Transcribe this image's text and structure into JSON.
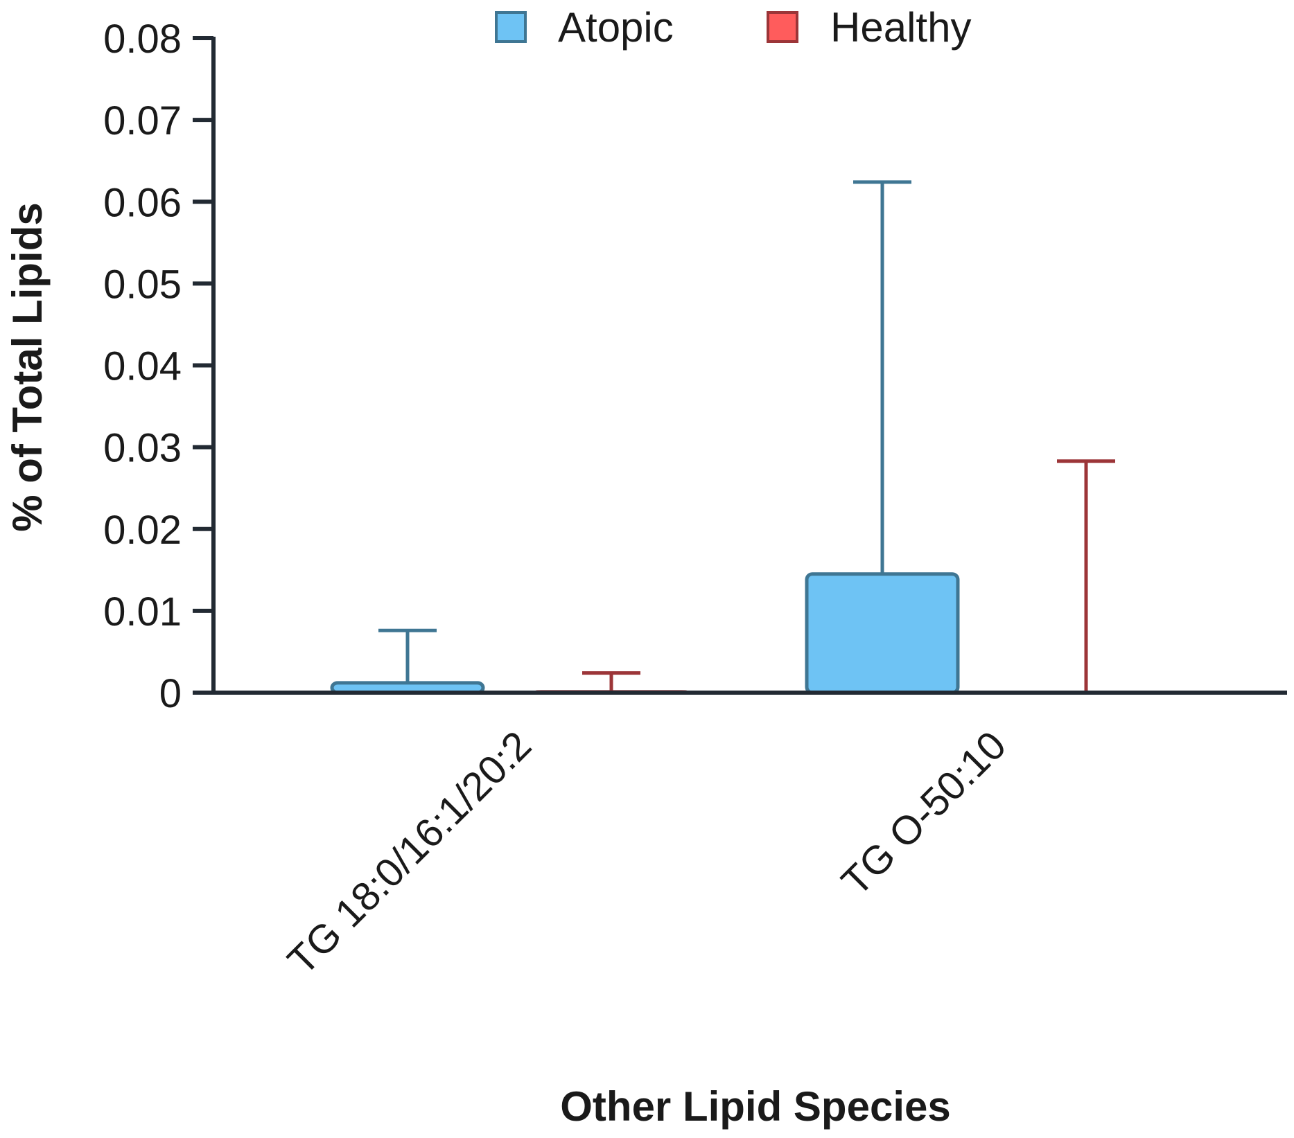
{
  "chart_data": {
    "type": "bar",
    "title": "",
    "xlabel": "Other Lipid Species",
    "ylabel": "% of Total Lipids",
    "categories": [
      "TG 18:0/16:1/20:2",
      "TG O-50:10"
    ],
    "series": [
      {
        "name": "Atopic",
        "values": [
          0.0012,
          0.0145
        ],
        "error_upper": [
          0.0076,
          0.0624
        ],
        "fill": "#6ec3f4",
        "stroke": "#3f7693"
      },
      {
        "name": "Healthy",
        "values": [
          0.0001,
          0.0
        ],
        "error_upper": [
          0.0024,
          0.0283
        ],
        "fill": "#ff5c5c",
        "stroke": "#9c3538"
      }
    ],
    "ylim": [
      0,
      0.08
    ],
    "yticks": [
      "0",
      "0.01",
      "0.02",
      "0.03",
      "0.04",
      "0.05",
      "0.06",
      "0.07",
      "0.08"
    ],
    "legend_position": "top-center",
    "grid": false,
    "axis_color": "#222a33"
  }
}
